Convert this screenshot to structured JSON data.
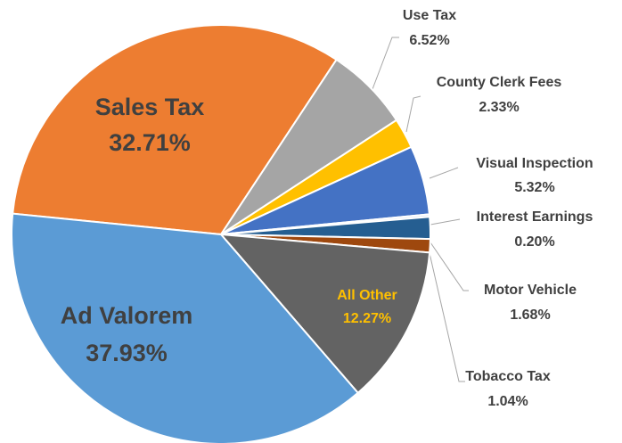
{
  "chart_data": {
    "type": "pie",
    "categories": [
      "Sales Tax",
      "Use Tax",
      "County Clerk Fees",
      "Visual Inspection",
      "Interest Earnings",
      "Motor Vehicle",
      "Tobacco Tax",
      "All Other",
      "Ad Valorem"
    ],
    "values": [
      32.71,
      6.52,
      2.33,
      5.32,
      0.2,
      1.68,
      1.04,
      12.27,
      37.93
    ],
    "value_labels": [
      "32.71%",
      "6.52%",
      "2.33%",
      "5.32%",
      "0.20%",
      "1.68%",
      "1.04%",
      "12.27%",
      "37.93%"
    ],
    "colors": [
      "#ed7d31",
      "#a5a5a5",
      "#ffc000",
      "#4472c4",
      "#dfe6f2",
      "#255e91",
      "#9e480e",
      "#636363",
      "#5b9bd5"
    ]
  }
}
